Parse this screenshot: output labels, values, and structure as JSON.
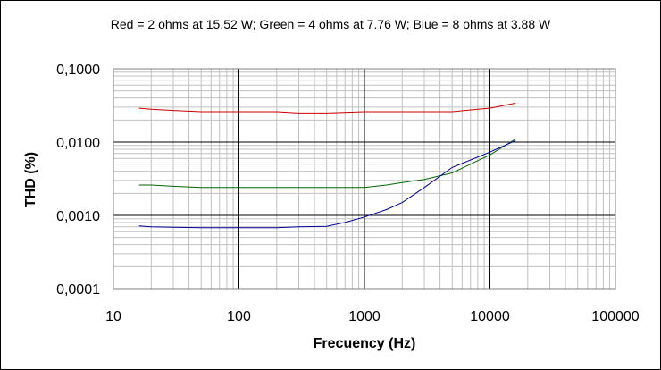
{
  "chart_data": {
    "type": "line",
    "title": "Red = 2 ohms at 15.52 W; Green = 4 ohms at 7.76 W; Blue = 8 ohms at 3.88 W",
    "xlabel": "Frecuency (Hz)",
    "ylabel": "THD (%)",
    "x_scale": "log",
    "y_scale": "log",
    "xlim": [
      10,
      100000
    ],
    "ylim": [
      0.0001,
      0.1
    ],
    "grid": true,
    "legend": "none",
    "x_tick_labels": [
      "10",
      "100",
      "1000",
      "10000",
      "100000"
    ],
    "y_tick_labels": [
      "0,1000",
      "0,0100",
      "0,0010",
      "0,0001"
    ],
    "series": [
      {
        "color": "#cc0000",
        "x": [
          16,
          20,
          30,
          50,
          70,
          100,
          200,
          300,
          500,
          1000,
          2000,
          5000,
          8000,
          10000,
          16000
        ],
        "y": [
          0.029,
          0.028,
          0.027,
          0.026,
          0.026,
          0.026,
          0.026,
          0.025,
          0.025,
          0.026,
          0.026,
          0.026,
          0.028,
          0.029,
          0.034
        ]
      },
      {
        "color": "#006600",
        "x": [
          16,
          20,
          30,
          50,
          70,
          100,
          200,
          500,
          1000,
          1500,
          2000,
          3000,
          5000,
          7000,
          10000,
          16000
        ],
        "y": [
          0.0026,
          0.0026,
          0.0025,
          0.0024,
          0.0024,
          0.0024,
          0.0024,
          0.0024,
          0.0024,
          0.0026,
          0.0028,
          0.0031,
          0.0038,
          0.005,
          0.0067,
          0.011
        ]
      },
      {
        "color": "#000099",
        "x": [
          16,
          20,
          30,
          50,
          100,
          200,
          300,
          500,
          700,
          1000,
          1500,
          2000,
          3000,
          5000,
          10000,
          16000
        ],
        "y": [
          0.00072,
          0.0007,
          0.00069,
          0.00068,
          0.00068,
          0.00068,
          0.0007,
          0.00071,
          0.0008,
          0.00095,
          0.0012,
          0.0015,
          0.0024,
          0.0045,
          0.0073,
          0.0105
        ]
      }
    ]
  }
}
